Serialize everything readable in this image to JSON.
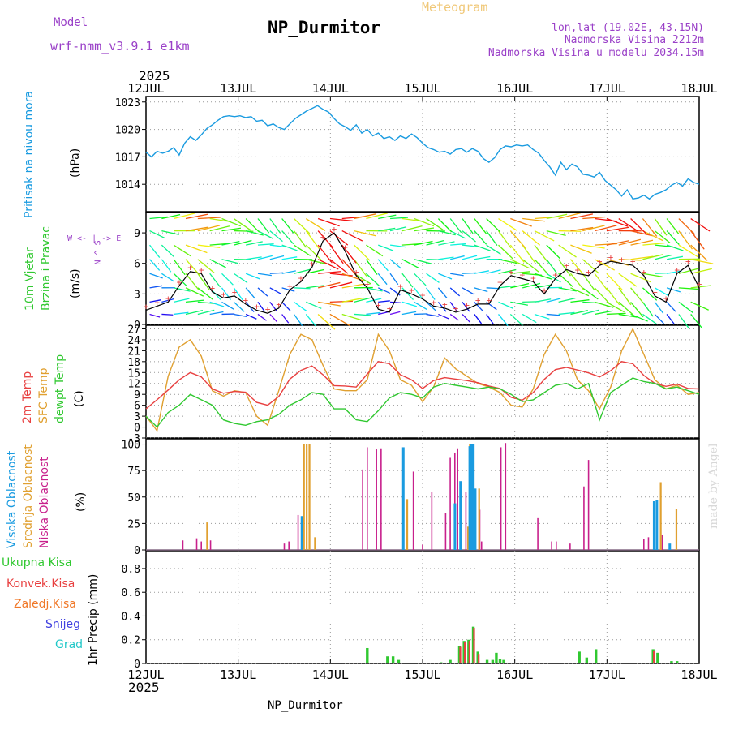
{
  "header": {
    "model_label": "Model",
    "model_name": "wrf-nmm_v3.9.1 e1km",
    "chart_type_label": "Meteogram",
    "station": "NP_Durmitor",
    "coords": "lon,lat (19.02E, 43.15N)",
    "altitude": "Nadmorska Visina 2212m",
    "model_altitude": "Nadmorska Visina u modelu 2034.15m",
    "year": "2025",
    "footer_station": "NP_Durmitor",
    "signature": "made by Angel",
    "wind_compass": "W <- | -> E",
    "wind_compass_ns": "N ^ S"
  },
  "colors": {
    "pressure": "#1a9be0",
    "temp2m": "#e84040",
    "sfc": "#e0a030",
    "dewpt": "#30c830",
    "high_cloud": "#1a9be0",
    "mid_cloud": "#e0a030",
    "low_cloud": "#c8208c",
    "total_precip": "#30c830",
    "conv_precip": "#e84040",
    "frz_precip": "#f07828",
    "snow": "#4040e0",
    "grad": "#20c8c8",
    "wind_gust": "#000000",
    "wind_max": "#e84040"
  },
  "chart_data": [
    {
      "type": "line",
      "panel": "pressure",
      "series_names": [
        "Pritisak na nivou mora"
      ],
      "ylabel": "(hPa)",
      "yticks": [
        1014,
        1017,
        1020,
        1023
      ],
      "ylim": [
        1011,
        1023.6
      ],
      "x_days": [
        0.0,
        0.06,
        0.12,
        0.18,
        0.24,
        0.3,
        0.36,
        0.42,
        0.48,
        0.54,
        0.6,
        0.66,
        0.72,
        0.78,
        0.84,
        0.9,
        0.96,
        1.02,
        1.08,
        1.14,
        1.2,
        1.26,
        1.32,
        1.38,
        1.44,
        1.5,
        1.56,
        1.62,
        1.68,
        1.74,
        1.8,
        1.86,
        1.92,
        1.98,
        2.04,
        2.1,
        2.16,
        2.22,
        2.28,
        2.34,
        2.4,
        2.46,
        2.52,
        2.58,
        2.64,
        2.7,
        2.76,
        2.82,
        2.88,
        2.94,
        3.0,
        3.06,
        3.12,
        3.18,
        3.24,
        3.3,
        3.36,
        3.42,
        3.48,
        3.54,
        3.6,
        3.66,
        3.72,
        3.78,
        3.84,
        3.9,
        3.96,
        4.02,
        4.08,
        4.14,
        4.2,
        4.26,
        4.32,
        4.38,
        4.44,
        4.5,
        4.56,
        4.62,
        4.68,
        4.74,
        4.8,
        4.86,
        4.92,
        4.98,
        5.04,
        5.1,
        5.16,
        5.22,
        5.28,
        5.34,
        5.4,
        5.46,
        5.52,
        5.58,
        5.64,
        5.7,
        5.76,
        5.82,
        5.88,
        5.94,
        6.0
      ],
      "values": [
        1017.5,
        1017.0,
        1017.6,
        1017.4,
        1017.6,
        1018.0,
        1017.2,
        1018.5,
        1019.2,
        1018.8,
        1019.4,
        1020.1,
        1020.5,
        1021.0,
        1021.4,
        1021.5,
        1021.4,
        1021.5,
        1021.3,
        1021.4,
        1020.9,
        1021.0,
        1020.4,
        1020.6,
        1020.2,
        1020.0,
        1020.6,
        1021.2,
        1021.6,
        1022.0,
        1022.3,
        1022.6,
        1022.2,
        1021.9,
        1021.2,
        1020.6,
        1020.3,
        1019.9,
        1020.5,
        1019.6,
        1020.0,
        1019.3,
        1019.6,
        1019.0,
        1019.2,
        1018.8,
        1019.3,
        1019.0,
        1019.5,
        1019.1,
        1018.5,
        1018.0,
        1017.8,
        1017.5,
        1017.6,
        1017.3,
        1017.8,
        1017.9,
        1017.5,
        1017.9,
        1017.6,
        1016.8,
        1016.4,
        1016.9,
        1017.8,
        1018.2,
        1018.1,
        1018.3,
        1018.2,
        1018.3,
        1017.8,
        1017.4,
        1016.6,
        1015.9,
        1015.0,
        1016.4,
        1015.6,
        1016.2,
        1015.9,
        1015.1,
        1015.0,
        1014.8,
        1015.3,
        1014.4,
        1013.9,
        1013.4,
        1012.7,
        1013.4,
        1012.4,
        1012.5,
        1012.8,
        1012.4,
        1012.9,
        1013.1,
        1013.4,
        1013.9,
        1014.2,
        1013.8,
        1014.6,
        1014.2,
        1014.0
      ]
    },
    {
      "type": "line",
      "panel": "wind",
      "series_names": [
        "10m Vjetar",
        "Brzina i Pravac"
      ],
      "ylabel": "(m/s)",
      "yticks": [
        0,
        3,
        6,
        9
      ],
      "ylim": [
        0,
        11
      ],
      "x_days": [
        0.0,
        0.12,
        0.24,
        0.36,
        0.48,
        0.6,
        0.72,
        0.84,
        0.96,
        1.08,
        1.2,
        1.32,
        1.44,
        1.56,
        1.68,
        1.8,
        1.92,
        2.04,
        2.16,
        2.28,
        2.4,
        2.52,
        2.64,
        2.76,
        2.88,
        3.0,
        3.12,
        3.24,
        3.36,
        3.48,
        3.6,
        3.72,
        3.84,
        3.96,
        4.08,
        4.2,
        4.32,
        4.44,
        4.56,
        4.68,
        4.8,
        4.92,
        5.04,
        5.16,
        5.28,
        5.4,
        5.52,
        5.64,
        5.76,
        5.88,
        6.0
      ],
      "speed": [
        1.4,
        1.8,
        2.2,
        3.8,
        5.2,
        5.0,
        3.2,
        2.6,
        2.8,
        2.0,
        1.4,
        1.1,
        1.6,
        3.4,
        4.2,
        5.6,
        8.2,
        9.0,
        7.2,
        4.8,
        3.6,
        1.5,
        1.2,
        3.4,
        3.0,
        2.5,
        1.8,
        1.6,
        1.2,
        1.5,
        2.0,
        2.0,
        3.8,
        4.8,
        4.5,
        4.2,
        3.0,
        4.5,
        5.4,
        5.0,
        4.8,
        5.8,
        6.2,
        6.0,
        5.8,
        4.8,
        2.8,
        2.2,
        5.0,
        5.8,
        3.6
      ]
    },
    {
      "type": "line",
      "panel": "temperature",
      "series_names": [
        "2m Temp",
        "SFC Temp",
        "dewpt Temp"
      ],
      "ylabel": "(C)",
      "yticks": [
        -3,
        0,
        3,
        6,
        9,
        12,
        15,
        18,
        21,
        24,
        27
      ],
      "ylim": [
        -3,
        28
      ],
      "x_days": [
        0.0,
        0.12,
        0.24,
        0.36,
        0.48,
        0.6,
        0.72,
        0.84,
        0.96,
        1.08,
        1.2,
        1.32,
        1.44,
        1.56,
        1.68,
        1.8,
        1.92,
        2.04,
        2.16,
        2.28,
        2.4,
        2.52,
        2.64,
        2.76,
        2.88,
        3.0,
        3.12,
        3.24,
        3.36,
        3.48,
        3.6,
        3.72,
        3.84,
        3.96,
        4.08,
        4.2,
        4.32,
        4.44,
        4.56,
        4.68,
        4.8,
        4.92,
        5.04,
        5.16,
        5.28,
        5.4,
        5.52,
        5.64,
        5.76,
        5.88,
        6.0
      ],
      "temp2m": [
        5.0,
        7.5,
        10.2,
        13.0,
        15.0,
        13.8,
        10.5,
        9.3,
        9.8,
        9.6,
        6.8,
        6.0,
        8.4,
        13.2,
        15.6,
        16.8,
        14.4,
        11.4,
        11.3,
        11.0,
        14.6,
        18.0,
        17.4,
        14.4,
        13.0,
        10.6,
        12.8,
        13.6,
        13.2,
        12.8,
        12.2,
        11.3,
        10.6,
        8.2,
        7.4,
        9.5,
        13.1,
        15.8,
        16.4,
        15.7,
        14.9,
        13.8,
        15.5,
        18.0,
        17.4,
        14.2,
        12.0,
        11.2,
        11.8,
        10.6,
        10.5
      ],
      "sfc": [
        3.0,
        -1.0,
        14.0,
        22.0,
        24.0,
        19.5,
        10.0,
        8.5,
        10.0,
        9.5,
        3.0,
        0.5,
        10.0,
        20.0,
        25.5,
        24.0,
        17.0,
        10.5,
        10.0,
        10.0,
        13.0,
        25.5,
        21.0,
        13.0,
        11.5,
        7.0,
        11.0,
        19.0,
        16.0,
        14.0,
        12.0,
        11.0,
        9.5,
        6.0,
        5.5,
        10.5,
        20.0,
        25.5,
        21.0,
        13.0,
        10.0,
        5.0,
        11.0,
        21.0,
        27.0,
        20.0,
        13.0,
        10.5,
        11.5,
        9.0,
        9.5
      ],
      "dewpt": [
        3.0,
        0.0,
        4.0,
        6.0,
        9.0,
        7.5,
        6.0,
        2.0,
        1.0,
        0.5,
        1.5,
        2.0,
        3.5,
        6.0,
        7.5,
        9.5,
        9.0,
        5.0,
        5.0,
        2.0,
        1.5,
        4.5,
        8.0,
        9.5,
        9.0,
        8.0,
        11.0,
        12.0,
        11.5,
        11.0,
        10.5,
        11.0,
        10.5,
        9.0,
        7.0,
        7.5,
        9.5,
        11.5,
        12.0,
        10.5,
        12.0,
        2.0,
        9.5,
        11.5,
        13.5,
        12.5,
        12.0,
        10.5,
        11.0,
        10.0,
        9.0
      ]
    },
    {
      "type": "bar",
      "panel": "cloud",
      "series_names": [
        "Visoka Oblacnost",
        "Srednja Oblacnost",
        "Niska Oblacnost"
      ],
      "ylabel": "(%)",
      "yticks": [
        0,
        25,
        50,
        75,
        100
      ],
      "ylim": [
        0,
        105
      ],
      "high": [
        [
          1.7,
          32
        ],
        [
          2.8,
          97
        ],
        [
          3.36,
          44
        ],
        [
          3.42,
          65
        ],
        [
          3.52,
          98
        ],
        [
          3.54,
          100
        ],
        [
          3.56,
          100
        ],
        [
          3.58,
          58
        ],
        [
          5.52,
          46
        ],
        [
          5.55,
          47
        ],
        [
          5.69,
          6
        ]
      ],
      "mid": [
        [
          0.65,
          26
        ],
        [
          1.7,
          100
        ],
        [
          1.73,
          100
        ],
        [
          1.76,
          100
        ],
        [
          1.82,
          12
        ],
        [
          2.82,
          48
        ],
        [
          3.48,
          22
        ],
        [
          3.5,
          100
        ],
        [
          3.6,
          58
        ],
        [
          5.57,
          64
        ],
        [
          5.74,
          39
        ]
      ],
      "low": [
        [
          0.4,
          9
        ],
        [
          0.55,
          11
        ],
        [
          0.6,
          8
        ],
        [
          0.7,
          9
        ],
        [
          1.5,
          6
        ],
        [
          1.55,
          8
        ],
        [
          1.65,
          33
        ],
        [
          2.35,
          76
        ],
        [
          2.4,
          97
        ],
        [
          2.5,
          95
        ],
        [
          2.55,
          96
        ],
        [
          2.9,
          74
        ],
        [
          3.0,
          5
        ],
        [
          3.1,
          55
        ],
        [
          3.25,
          35
        ],
        [
          3.3,
          87
        ],
        [
          3.35,
          92
        ],
        [
          3.38,
          96
        ],
        [
          3.47,
          55
        ],
        [
          3.62,
          38
        ],
        [
          3.64,
          8
        ],
        [
          3.85,
          97
        ],
        [
          3.9,
          101
        ],
        [
          4.25,
          30
        ],
        [
          4.4,
          8
        ],
        [
          4.45,
          8
        ],
        [
          4.6,
          6
        ],
        [
          4.75,
          60
        ],
        [
          4.8,
          85
        ],
        [
          5.4,
          10
        ],
        [
          5.45,
          12
        ],
        [
          5.6,
          14
        ]
      ]
    },
    {
      "type": "bar",
      "panel": "precip",
      "series_names": [
        "Ukupna Kisa",
        "Konvek.Kisa",
        "Zaledj.Kisa",
        "Snijeg",
        "Grad"
      ],
      "ylabel": "1hr Precip (mm)",
      "yticks": [
        0,
        0.2,
        0.4,
        0.6,
        0.8
      ],
      "ylim": [
        0,
        0.95
      ],
      "total": [
        [
          2.4,
          0.13
        ],
        [
          2.62,
          0.06
        ],
        [
          2.68,
          0.06
        ],
        [
          2.74,
          0.03
        ],
        [
          3.2,
          0.01
        ],
        [
          3.3,
          0.03
        ],
        [
          3.4,
          0.15
        ],
        [
          3.45,
          0.19
        ],
        [
          3.5,
          0.2
        ],
        [
          3.55,
          0.31
        ],
        [
          3.6,
          0.1
        ],
        [
          3.7,
          0.03
        ],
        [
          3.76,
          0.03
        ],
        [
          3.8,
          0.09
        ],
        [
          3.84,
          0.04
        ],
        [
          3.88,
          0.03
        ],
        [
          4.7,
          0.1
        ],
        [
          4.78,
          0.05
        ],
        [
          4.88,
          0.12
        ],
        [
          5.5,
          0.12
        ],
        [
          5.55,
          0.09
        ],
        [
          5.7,
          0.02
        ],
        [
          5.76,
          0.02
        ]
      ],
      "conv": [
        [
          3.4,
          0.14
        ],
        [
          3.45,
          0.18
        ],
        [
          3.5,
          0.19
        ],
        [
          3.55,
          0.3
        ],
        [
          3.6,
          0.08
        ],
        [
          5.5,
          0.11
        ]
      ]
    }
  ],
  "xaxis": {
    "labels": [
      "12JUL",
      "13JUL",
      "14JUL",
      "15JUL",
      "16JUL",
      "17JUL",
      "18JUL"
    ],
    "range_days": [
      0,
      6
    ]
  }
}
